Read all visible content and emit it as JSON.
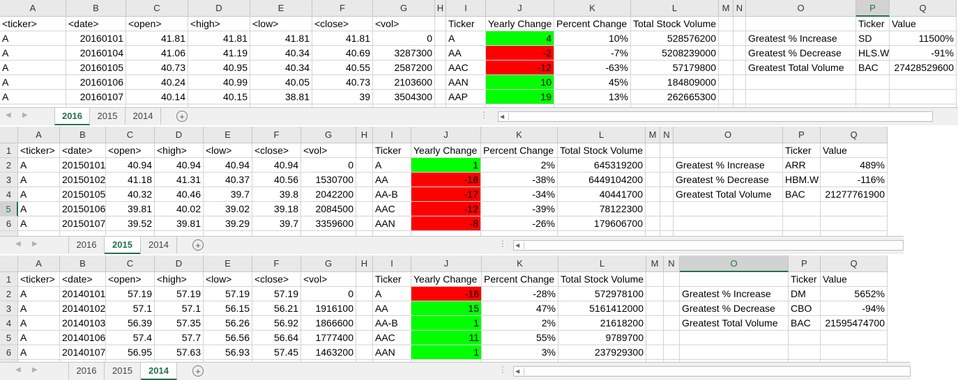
{
  "columns": [
    "A",
    "B",
    "C",
    "D",
    "E",
    "F",
    "G",
    "H",
    "I",
    "J",
    "K",
    "L",
    "M",
    "N",
    "O",
    "P",
    "Q"
  ],
  "header_row": [
    "<ticker>",
    "<date>",
    "<open>",
    "<high>",
    "<low>",
    "<close>",
    "<vol>",
    "",
    "Ticker",
    "Yearly Change",
    "Percent Change",
    "Total Stock Volume",
    "",
    "",
    "",
    "Ticker",
    "Value"
  ],
  "summary_labels": [
    "Greatest % Increase",
    "Greatest % Decrease",
    "Greatest Total Volume"
  ],
  "tab_names": [
    "2016",
    "2015",
    "2014"
  ],
  "add_sheet_icon": "plus-circle-icon",
  "colors": {
    "positive": "#00ff00",
    "negative": "#ff0000",
    "accent": "#217346"
  },
  "sheets": [
    {
      "name": "2016",
      "rows": [
        [
          "A",
          "20160101",
          "41.81",
          "41.81",
          "41.81",
          "41.81",
          "0",
          "",
          "A",
          "4",
          "10%",
          "528576200"
        ],
        [
          "A",
          "20160104",
          "41.06",
          "41.19",
          "40.34",
          "40.69",
          "3287300",
          "",
          "AA",
          "-2",
          "-7%",
          "5208239000"
        ],
        [
          "A",
          "20160105",
          "40.73",
          "40.95",
          "40.34",
          "40.55",
          "2587200",
          "",
          "AAC",
          "-12",
          "-63%",
          "57179800"
        ],
        [
          "A",
          "20160106",
          "40.24",
          "40.99",
          "40.05",
          "40.73",
          "2103600",
          "",
          "AAN",
          "10",
          "45%",
          "184809000"
        ],
        [
          "A",
          "20160107",
          "40.14",
          "40.15",
          "38.81",
          "39",
          "3504300",
          "",
          "AAP",
          "19",
          "13%",
          "262665300"
        ]
      ],
      "summary": [
        [
          "SD",
          "11500%"
        ],
        [
          "HLS.W",
          "-91%"
        ],
        [
          "BAC",
          "27428529600"
        ]
      ]
    },
    {
      "name": "2015",
      "rows": [
        [
          "A",
          "20150101",
          "40.94",
          "40.94",
          "40.94",
          "40.94",
          "0",
          "",
          "A",
          "1",
          "2%",
          "645319200"
        ],
        [
          "A",
          "20150102",
          "41.18",
          "41.31",
          "40.37",
          "40.56",
          "1530700",
          "",
          "AA",
          "-18",
          "-38%",
          "6449104200"
        ],
        [
          "A",
          "20150105",
          "40.32",
          "40.46",
          "39.7",
          "39.8",
          "2042200",
          "",
          "AA-B",
          "-17",
          "-34%",
          "40441700"
        ],
        [
          "A",
          "20150106",
          "39.81",
          "40.02",
          "39.02",
          "39.18",
          "2084500",
          "",
          "AAC",
          "-12",
          "-39%",
          "78122300"
        ],
        [
          "A",
          "20150107",
          "39.52",
          "39.81",
          "39.29",
          "39.7",
          "3359600",
          "",
          "AAN",
          "-8",
          "-26%",
          "179606700"
        ]
      ],
      "summary": [
        [
          "ARR",
          "489%"
        ],
        [
          "HBM.W",
          "-116%"
        ],
        [
          "BAC",
          "21277761900"
        ]
      ]
    },
    {
      "name": "2014",
      "rows": [
        [
          "A",
          "20140101",
          "57.19",
          "57.19",
          "57.19",
          "57.19",
          "0",
          "",
          "A",
          "-16",
          "-28%",
          "572978100"
        ],
        [
          "A",
          "20140102",
          "57.1",
          "57.1",
          "56.15",
          "56.21",
          "1916100",
          "",
          "AA",
          "15",
          "47%",
          "5161412000"
        ],
        [
          "A",
          "20140103",
          "56.39",
          "57.35",
          "56.26",
          "56.92",
          "1866600",
          "",
          "AA-B",
          "1",
          "2%",
          "21618200"
        ],
        [
          "A",
          "20140106",
          "57.4",
          "57.7",
          "56.56",
          "56.64",
          "1777400",
          "",
          "AAC",
          "11",
          "55%",
          "9789700"
        ],
        [
          "A",
          "20140107",
          "56.95",
          "57.63",
          "56.93",
          "57.45",
          "1463200",
          "",
          "AAN",
          "1",
          "3%",
          "237929300"
        ]
      ],
      "summary": [
        [
          "DM",
          "5652%"
        ],
        [
          "CBO",
          "-94%"
        ],
        [
          "BAC",
          "21595474700"
        ]
      ]
    }
  ]
}
